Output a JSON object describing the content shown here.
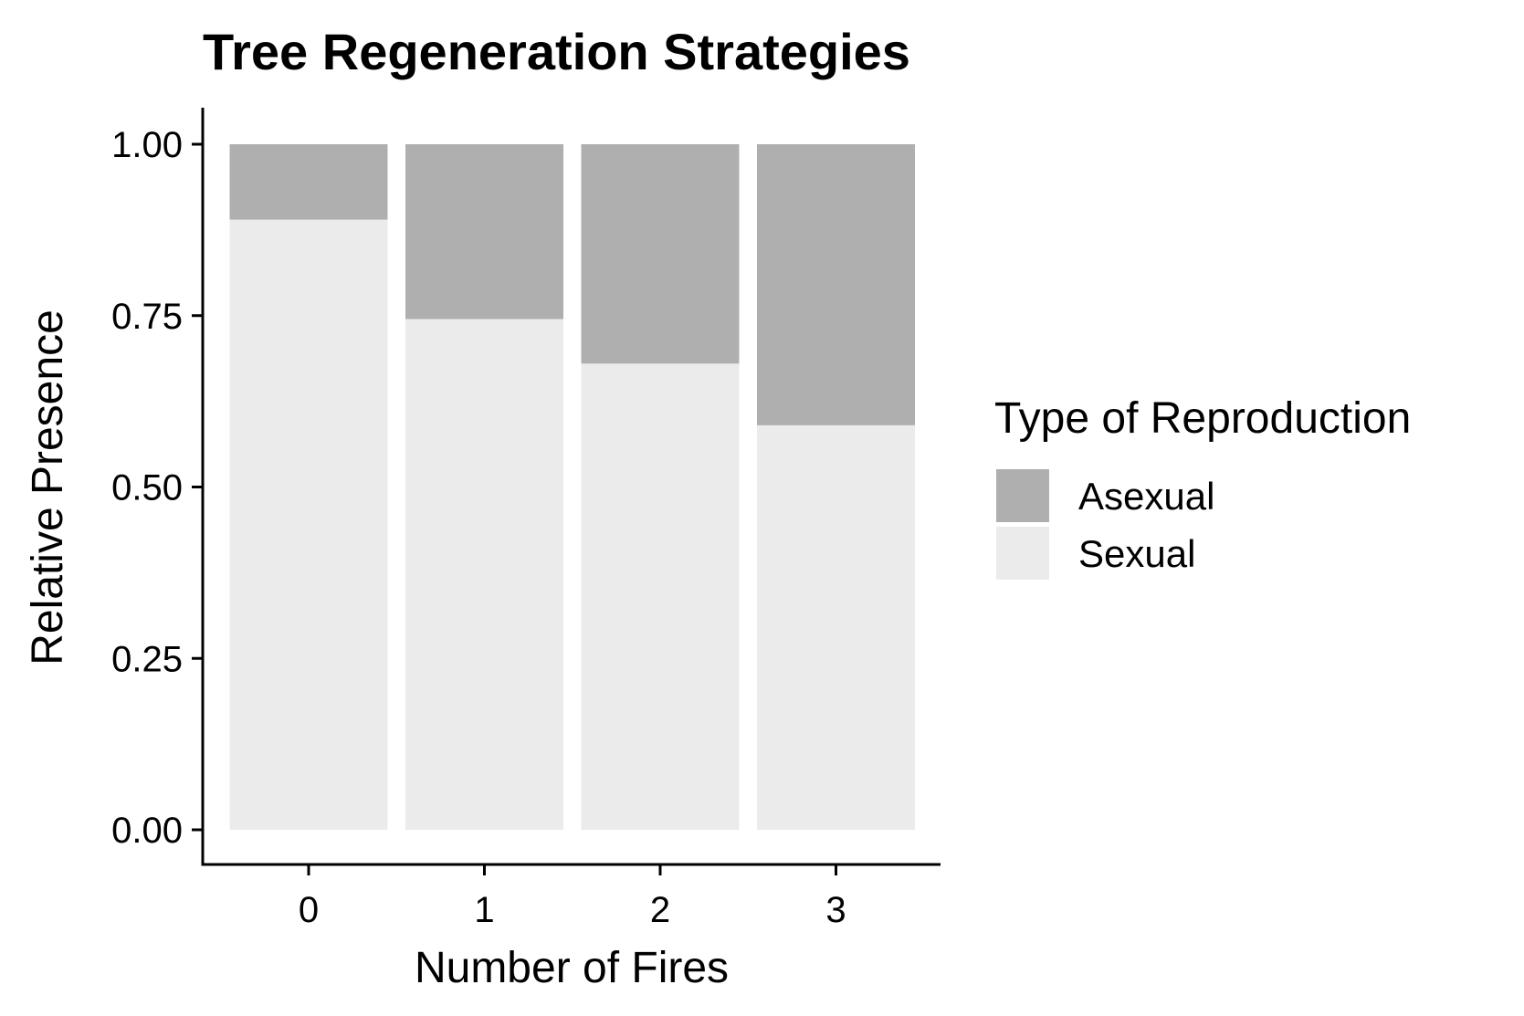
{
  "chart_data": {
    "type": "bar",
    "stacked": true,
    "title": "Tree Regeneration Strategies",
    "xlabel": "Number of Fires",
    "ylabel": "Relative Presence",
    "categories": [
      "0",
      "1",
      "2",
      "3"
    ],
    "ylim": [
      0,
      1
    ],
    "yticks": [
      "0.00",
      "0.25",
      "0.50",
      "0.75",
      "1.00"
    ],
    "series": [
      {
        "name": "Sexual",
        "color": "#ebebeb",
        "values": [
          0.89,
          0.745,
          0.68,
          0.59
        ]
      },
      {
        "name": "Asexual",
        "color": "#afafaf",
        "values": [
          0.11,
          0.255,
          0.32,
          0.41
        ]
      }
    ],
    "legend": {
      "title": "Type of Reproduction",
      "position": "right",
      "order": [
        "Asexual",
        "Sexual"
      ]
    },
    "grid": false
  }
}
